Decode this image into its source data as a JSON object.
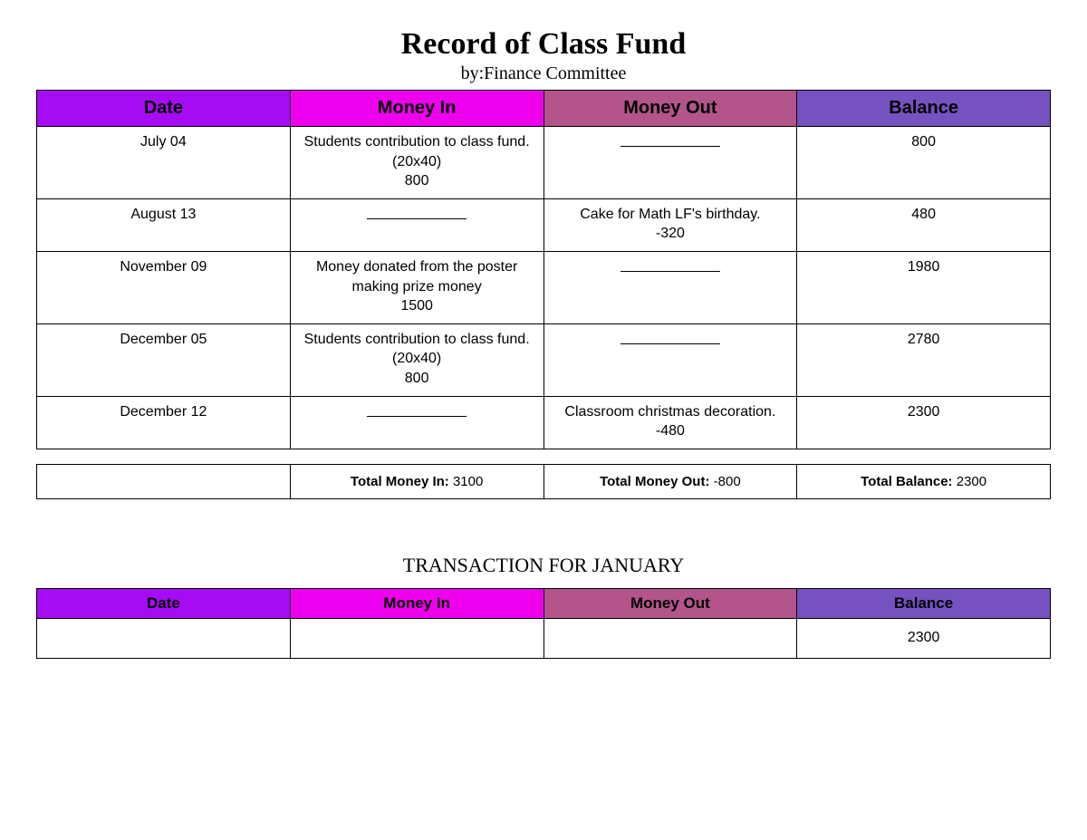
{
  "title": "Record of Class Fund",
  "subtitle": "by:Finance Committee",
  "header_colors": {
    "date": "#a60cf4",
    "money_in": "#ee00ee",
    "money_out": "#b3558a",
    "balance": "#7552bf"
  },
  "columns": {
    "date": "Date",
    "money_in": "Money In",
    "money_out": "Money Out",
    "balance": "Balance"
  },
  "rows": [
    {
      "date": "July 04",
      "money_in": "Students contribution to class fund.\n(20x40)\n800",
      "money_out": "___",
      "balance": "800",
      "tall": true
    },
    {
      "date": "August 13",
      "money_in": "___",
      "money_out": "Cake for Math LF's birthday.\n-320",
      "balance": "480"
    },
    {
      "date": "November 09",
      "money_in": "Money donated from the poster making prize money\n1500",
      "money_out": "___",
      "balance": "1980"
    },
    {
      "date": "December 05",
      "money_in": "Students contribution to class fund.\n(20x40)\n800",
      "money_out": "___",
      "balance": "2780"
    },
    {
      "date": "December 12",
      "money_in": "___",
      "money_out": "Classroom christmas decoration.\n-480",
      "balance": "2300"
    }
  ],
  "totals": {
    "money_in_label": "Total Money In:",
    "money_in_value": "3100",
    "money_out_label": "Total Money Out:",
    "money_out_value": "-800",
    "balance_label": "Total Balance:",
    "balance_value": "2300"
  },
  "january": {
    "heading": "TRANSACTION FOR JANUARY",
    "row": {
      "date": "",
      "money_in": "",
      "money_out": "",
      "balance": "2300"
    }
  }
}
